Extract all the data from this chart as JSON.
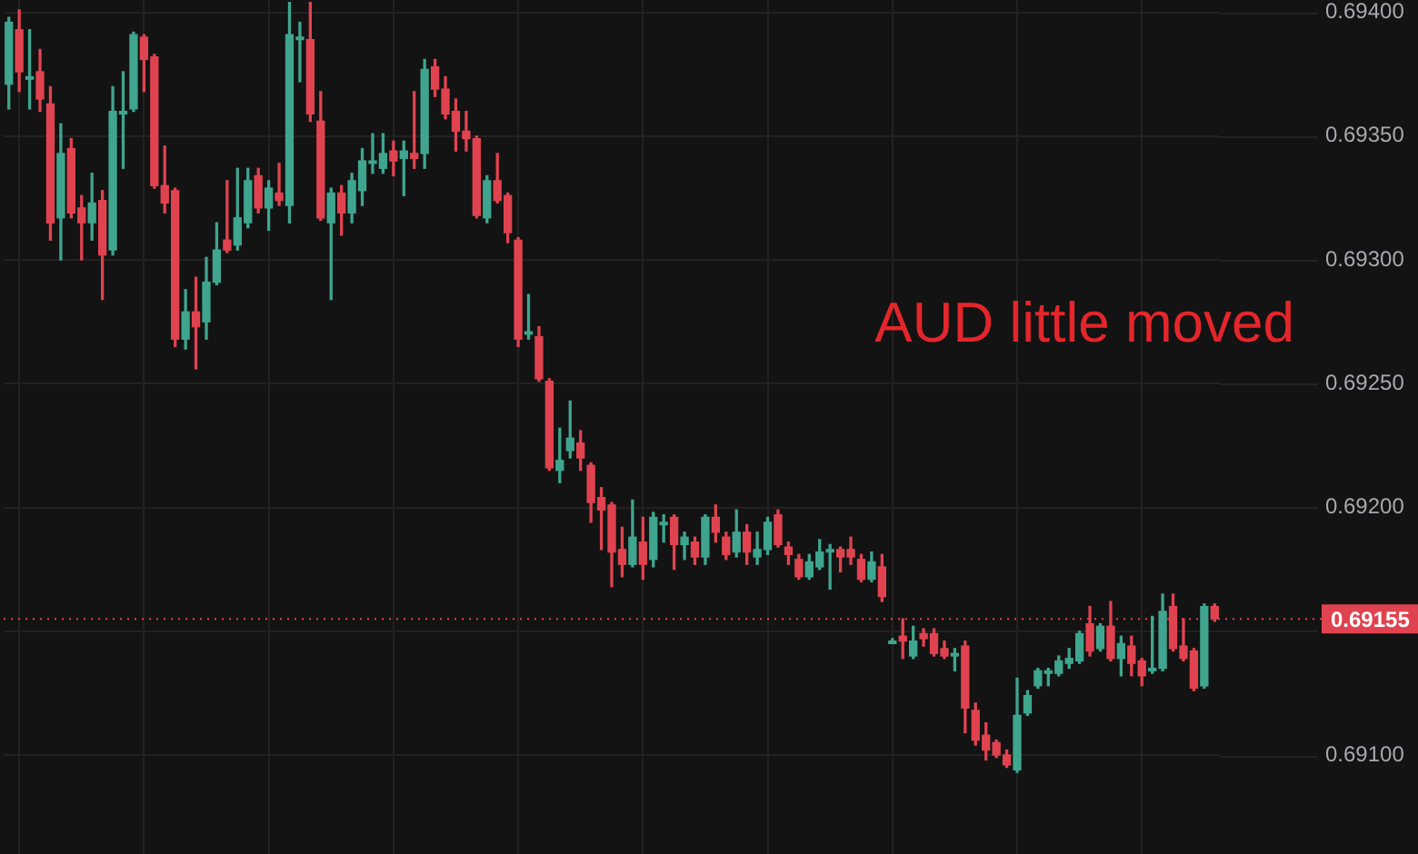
{
  "chart_data": {
    "type": "candlestick",
    "categories": [
      null,
      null,
      null,
      null,
      null,
      null,
      null,
      null,
      null,
      null,
      null,
      null,
      null,
      null,
      null,
      null,
      null,
      null,
      null,
      null,
      null,
      null,
      null,
      null,
      null,
      null,
      null,
      null,
      null,
      null,
      null,
      null,
      null,
      null,
      null,
      null,
      null,
      null,
      null,
      null,
      null,
      null,
      null,
      null,
      null,
      null,
      null,
      null,
      null,
      null,
      null,
      null,
      null,
      null,
      null,
      null,
      null,
      null,
      null,
      null,
      null,
      null,
      null,
      null,
      null,
      null,
      null,
      null,
      null,
      null,
      null,
      null,
      null,
      null,
      null,
      null,
      null,
      null,
      null,
      null,
      null,
      null,
      null,
      null,
      null,
      null,
      null,
      null,
      null,
      null,
      null,
      null,
      null,
      null,
      null,
      null,
      null,
      null,
      null,
      null,
      null,
      null,
      null,
      null,
      null,
      null,
      null,
      null,
      null,
      null,
      null,
      null,
      null,
      null,
      null,
      null,
      null
    ],
    "ohlc": [
      [
        0.69371,
        0.69398,
        0.69361,
        0.69396
      ],
      [
        0.69393,
        0.69401,
        0.69368,
        0.69376
      ],
      [
        0.69373,
        0.69393,
        0.69361,
        0.69374
      ],
      [
        0.69376,
        0.69385,
        0.6936,
        0.69365
      ],
      [
        0.69363,
        0.6937,
        0.69308,
        0.69315
      ],
      [
        0.69317,
        0.69355,
        0.693,
        0.69343
      ],
      [
        0.69345,
        0.69349,
        0.69317,
        0.69319
      ],
      [
        0.69321,
        0.69326,
        0.693,
        0.69315
      ],
      [
        0.69315,
        0.69335,
        0.69308,
        0.69323
      ],
      [
        0.69324,
        0.69328,
        0.69284,
        0.69302
      ],
      [
        0.69304,
        0.6937,
        0.69302,
        0.6936
      ],
      [
        0.69359,
        0.69376,
        0.69337,
        0.6936
      ],
      [
        0.69361,
        0.69392,
        0.6936,
        0.69391
      ],
      [
        0.6939,
        0.69391,
        0.69368,
        0.69381
      ],
      [
        0.69382,
        0.69383,
        0.69329,
        0.6933
      ],
      [
        0.6933,
        0.69346,
        0.69319,
        0.69323
      ],
      [
        0.69328,
        0.69329,
        0.69265,
        0.69268
      ],
      [
        0.69268,
        0.69288,
        0.69264,
        0.69279
      ],
      [
        0.69279,
        0.69293,
        0.69256,
        0.69273
      ],
      [
        0.69275,
        0.69301,
        0.69268,
        0.69291
      ],
      [
        0.69291,
        0.69315,
        0.6929,
        0.69304
      ],
      [
        0.69308,
        0.69332,
        0.69303,
        0.69304
      ],
      [
        0.69306,
        0.69337,
        0.69304,
        0.69317
      ],
      [
        0.69315,
        0.69337,
        0.69313,
        0.69332
      ],
      [
        0.69334,
        0.69337,
        0.69319,
        0.69321
      ],
      [
        0.69321,
        0.69332,
        0.69312,
        0.69329
      ],
      [
        0.69327,
        0.69339,
        0.69322,
        0.69324
      ],
      [
        0.69322,
        0.69404,
        0.69315,
        0.69391
      ],
      [
        0.69389,
        0.69396,
        0.69372,
        0.6939
      ],
      [
        0.69389,
        0.69404,
        0.69356,
        0.69359
      ],
      [
        0.69356,
        0.69368,
        0.69316,
        0.69317
      ],
      [
        0.69315,
        0.69329,
        0.69284,
        0.69327
      ],
      [
        0.69327,
        0.6933,
        0.6931,
        0.69319
      ],
      [
        0.69319,
        0.69335,
        0.69315,
        0.69332
      ],
      [
        0.69328,
        0.69345,
        0.69322,
        0.6934
      ],
      [
        0.69339,
        0.69351,
        0.69335,
        0.6934
      ],
      [
        0.69337,
        0.69351,
        0.69335,
        0.69343
      ],
      [
        0.69344,
        0.69348,
        0.69334,
        0.6934
      ],
      [
        0.69341,
        0.69348,
        0.69326,
        0.69344
      ],
      [
        0.69343,
        0.69368,
        0.69337,
        0.69341
      ],
      [
        0.69343,
        0.69381,
        0.69337,
        0.69377
      ],
      [
        0.69378,
        0.69381,
        0.69366,
        0.69369
      ],
      [
        0.69369,
        0.69374,
        0.69357,
        0.69359
      ],
      [
        0.6936,
        0.69365,
        0.69344,
        0.69352
      ],
      [
        0.69352,
        0.6936,
        0.69344,
        0.69349
      ],
      [
        0.69349,
        0.6935,
        0.69317,
        0.69318
      ],
      [
        0.69317,
        0.69334,
        0.69315,
        0.69332
      ],
      [
        0.69332,
        0.69343,
        0.69323,
        0.69324
      ],
      [
        0.69326,
        0.69327,
        0.69307,
        0.69311
      ],
      [
        0.69308,
        0.69309,
        0.69265,
        0.69268
      ],
      [
        0.6927,
        0.69286,
        0.69268,
        0.69271
      ],
      [
        0.69269,
        0.69273,
        0.69251,
        0.69252
      ],
      [
        0.69251,
        0.69252,
        0.69215,
        0.69216
      ],
      [
        0.69215,
        0.69232,
        0.6921,
        0.69219
      ],
      [
        0.69223,
        0.69243,
        0.6922,
        0.69228
      ],
      [
        0.69226,
        0.69231,
        0.69215,
        0.6922
      ],
      [
        0.69217,
        0.69218,
        0.69194,
        0.69202
      ],
      [
        0.69204,
        0.69208,
        0.69183,
        0.69199
      ],
      [
        0.69201,
        0.69202,
        0.69168,
        0.69182
      ],
      [
        0.69183,
        0.69192,
        0.69172,
        0.69177
      ],
      [
        0.69177,
        0.69203,
        0.69176,
        0.69188
      ],
      [
        0.69186,
        0.69196,
        0.69171,
        0.69177
      ],
      [
        0.69179,
        0.69198,
        0.69176,
        0.69196
      ],
      [
        0.69193,
        0.69197,
        0.69186,
        0.69194
      ],
      [
        0.69196,
        0.69197,
        0.69175,
        0.69185
      ],
      [
        0.69185,
        0.6919,
        0.69179,
        0.69188
      ],
      [
        0.69186,
        0.69188,
        0.69177,
        0.6918
      ],
      [
        0.6918,
        0.69197,
        0.69177,
        0.69196
      ],
      [
        0.69196,
        0.69201,
        0.69186,
        0.6919
      ],
      [
        0.69188,
        0.6919,
        0.69179,
        0.69181
      ],
      [
        0.69182,
        0.69199,
        0.6918,
        0.6919
      ],
      [
        0.6919,
        0.69193,
        0.69177,
        0.69182
      ],
      [
        0.6918,
        0.6919,
        0.69177,
        0.69183
      ],
      [
        0.69183,
        0.69196,
        0.69181,
        0.69194
      ],
      [
        0.69197,
        0.69199,
        0.69184,
        0.69185
      ],
      [
        0.69184,
        0.69186,
        0.69177,
        0.69181
      ],
      [
        0.69179,
        0.69181,
        0.69171,
        0.69172
      ],
      [
        0.69172,
        0.69181,
        0.69171,
        0.69178
      ],
      [
        0.69176,
        0.69187,
        0.69175,
        0.69182
      ],
      [
        0.69182,
        0.69185,
        0.69167,
        0.69183
      ],
      [
        0.69183,
        0.69184,
        0.69174,
        0.6918
      ],
      [
        0.69183,
        0.69188,
        0.69177,
        0.6918
      ],
      [
        0.69179,
        0.69181,
        0.6917,
        0.69171
      ],
      [
        0.69171,
        0.69182,
        0.6917,
        0.69178
      ],
      [
        0.69176,
        0.69181,
        0.69162,
        0.69164
      ],
      [
        0.69145,
        0.69147,
        0.69145,
        0.69146
      ],
      [
        0.69148,
        0.69155,
        0.69139,
        0.69146
      ],
      [
        0.6914,
        0.69152,
        0.69139,
        0.69146
      ],
      [
        0.69149,
        0.69151,
        0.69144,
        0.69147
      ],
      [
        0.69149,
        0.69151,
        0.6914,
        0.69141
      ],
      [
        0.69143,
        0.69146,
        0.69139,
        0.6914
      ],
      [
        0.6914,
        0.69143,
        0.69134,
        0.69141
      ],
      [
        0.69144,
        0.69146,
        0.69109,
        0.69119
      ],
      [
        0.69118,
        0.69121,
        0.69104,
        0.69106
      ],
      [
        0.69108,
        0.69113,
        0.69098,
        0.69102
      ],
      [
        0.69105,
        0.69106,
        0.69099,
        0.691
      ],
      [
        0.691,
        0.69102,
        0.69095,
        0.69096
      ],
      [
        0.69094,
        0.69131,
        0.69093,
        0.69116
      ],
      [
        0.69117,
        0.69126,
        0.69116,
        0.69124
      ],
      [
        0.69128,
        0.69135,
        0.69127,
        0.69134
      ],
      [
        0.69133,
        0.69135,
        0.69128,
        0.69134
      ],
      [
        0.69133,
        0.6914,
        0.69132,
        0.69138
      ],
      [
        0.69137,
        0.69143,
        0.69135,
        0.69139
      ],
      [
        0.69138,
        0.6915,
        0.69137,
        0.69149
      ],
      [
        0.69153,
        0.6916,
        0.6914,
        0.69142
      ],
      [
        0.69143,
        0.69153,
        0.69142,
        0.69152
      ],
      [
        0.69152,
        0.69162,
        0.69138,
        0.69139
      ],
      [
        0.69139,
        0.69148,
        0.69132,
        0.69145
      ],
      [
        0.69144,
        0.69148,
        0.69132,
        0.69137
      ],
      [
        0.69138,
        0.69139,
        0.69128,
        0.69132
      ],
      [
        0.69134,
        0.69156,
        0.69133,
        0.69135
      ],
      [
        0.69135,
        0.69165,
        0.69134,
        0.69158
      ],
      [
        0.6916,
        0.69165,
        0.69142,
        0.69143
      ],
      [
        0.69144,
        0.69155,
        0.69138,
        0.69139
      ],
      [
        0.69142,
        0.69143,
        0.69126,
        0.69127
      ],
      [
        0.69128,
        0.69161,
        0.69127,
        0.6916
      ],
      [
        0.6916,
        0.69161,
        0.69154,
        0.69155
      ]
    ],
    "colors": [
      "#3fa58e",
      "#e0434f",
      "#3fa58e",
      "#e0434f",
      "#e0434f",
      "#3fa58e",
      "#e0434f",
      "#e0434f",
      "#3fa58e",
      "#e0434f",
      "#3fa58e",
      "#3fa58e",
      "#3fa58e",
      "#e0434f",
      "#e0434f",
      "#e0434f",
      "#e0434f",
      "#3fa58e",
      "#e0434f",
      "#3fa58e",
      "#3fa58e",
      "#e0434f",
      "#3fa58e",
      "#3fa58e",
      "#e0434f",
      "#3fa58e",
      "#e0434f",
      "#3fa58e",
      "#3fa58e",
      "#e0434f",
      "#e0434f",
      "#3fa58e",
      "#e0434f",
      "#3fa58e",
      "#3fa58e",
      "#3fa58e",
      "#3fa58e",
      "#e0434f",
      "#3fa58e",
      "#e0434f",
      "#3fa58e",
      "#e0434f",
      "#e0434f",
      "#e0434f",
      "#e0434f",
      "#e0434f",
      "#3fa58e",
      "#e0434f",
      "#e0434f",
      "#e0434f",
      "#3fa58e",
      "#e0434f",
      "#e0434f",
      "#3fa58e",
      "#3fa58e",
      "#e0434f",
      "#e0434f",
      "#e0434f",
      "#e0434f",
      "#e0434f",
      "#3fa58e",
      "#e0434f",
      "#3fa58e",
      "#3fa58e",
      "#e0434f",
      "#3fa58e",
      "#e0434f",
      "#3fa58e",
      "#e0434f",
      "#e0434f",
      "#3fa58e",
      "#e0434f",
      "#3fa58e",
      "#3fa58e",
      "#e0434f",
      "#e0434f",
      "#e0434f",
      "#3fa58e",
      "#3fa58e",
      "#3fa58e",
      "#e0434f",
      "#e0434f",
      "#e0434f",
      "#3fa58e",
      "#e0434f",
      "#3fa58e",
      "#e0434f",
      "#3fa58e",
      "#e0434f",
      "#e0434f",
      "#e0434f",
      "#3fa58e",
      "#e0434f",
      "#e0434f",
      "#e0434f",
      "#e0434f",
      "#e0434f",
      "#3fa58e",
      "#3fa58e",
      "#3fa58e",
      "#3fa58e",
      "#3fa58e",
      "#3fa58e",
      "#3fa58e",
      "#e0434f",
      "#3fa58e",
      "#e0434f",
      "#3fa58e",
      "#e0434f",
      "#e0434f",
      "#3fa58e",
      "#3fa58e",
      "#e0434f",
      "#e0434f",
      "#e0434f",
      "#3fa58e",
      "#e0434f"
    ],
    "ylim": [
      0.6906,
      0.69405
    ],
    "yticks": [
      {
        "value": 0.691,
        "label": "0.69100"
      },
      {
        "value": 0.6915,
        "label": null
      },
      {
        "value": 0.692,
        "label": "0.69200"
      },
      {
        "value": 0.6925,
        "label": "0.69250"
      },
      {
        "value": 0.693,
        "label": "0.69300"
      },
      {
        "value": 0.6935,
        "label": "0.69350"
      },
      {
        "value": 0.694,
        "label": "0.69400"
      }
    ],
    "grid": true,
    "tick_labels": "y",
    "ref_lines": [
      {
        "axis": "y",
        "value": 0.69155,
        "label": "0.69155",
        "color": "#e0434f",
        "line_style": "dotted"
      }
    ],
    "annotations": [
      "AUD little moved"
    ]
  }
}
